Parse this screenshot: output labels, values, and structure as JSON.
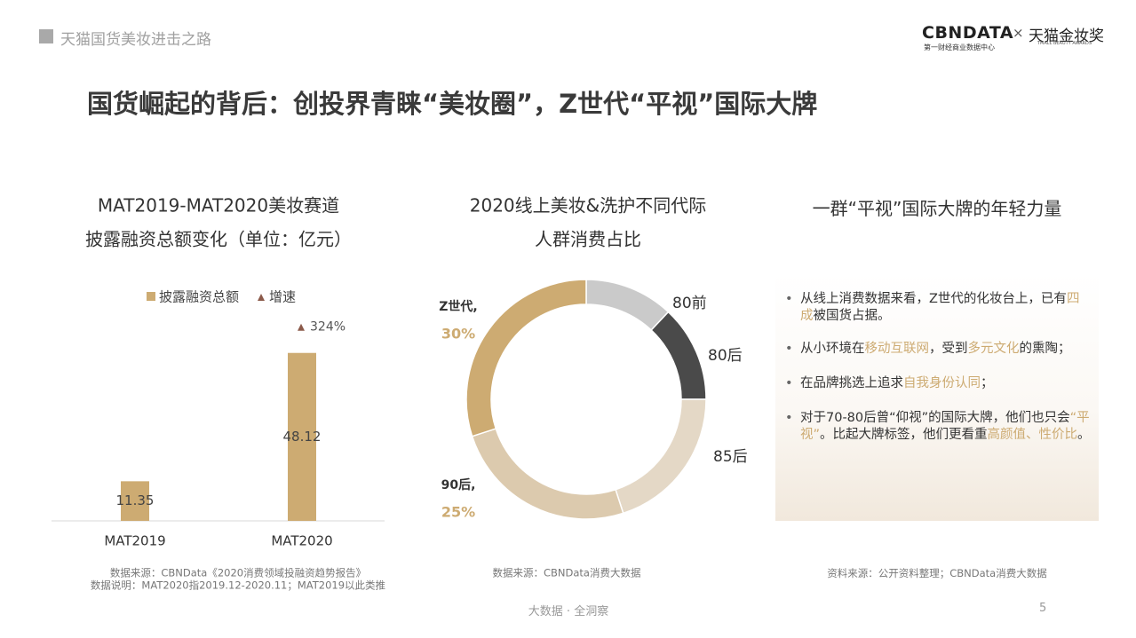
{
  "header": {
    "section": "天猫国货美妆进击之路",
    "logo_main": "CBNDATA",
    "logo_sub": "第一财经商业数据中心",
    "logo_x": "×",
    "logo_brand": "天猫金妆奖",
    "logo_brand_sub": "TMALL BEAUTY AWARDS"
  },
  "title": "国货崛起的背后：创投界青睐“美妆圈”，Z世代“平视”国际大牌",
  "chart_data": [
    {
      "type": "bar",
      "title_lines": [
        "MAT2019-MAT2020美妆赛道",
        "披露融资总额变化（单位：亿元）"
      ],
      "categories": [
        "MAT2019",
        "MAT2020"
      ],
      "series": [
        {
          "name": "披露融资总额",
          "color": "#cdab72",
          "values": [
            11.35,
            48.12
          ]
        }
      ],
      "growth": {
        "name": "增速",
        "color": "#8b5a4a",
        "values": [
          null,
          324
        ],
        "value_labels": [
          null,
          "324%"
        ]
      },
      "ylim": [
        0,
        60
      ],
      "source": [
        "数据来源：CBNData《2020消费领域投融资趋势报告》",
        "数据说明：MAT2020指2019.12-2020.11；MAT2019以此类推"
      ]
    },
    {
      "type": "donut",
      "title_lines": [
        "2020线上美妆&洗护不同代际",
        "人群消费占比"
      ],
      "categories": [
        "80前",
        "80后",
        "85后",
        "90后,",
        "Z世代,"
      ],
      "values": [
        12,
        13,
        20,
        25,
        30
      ],
      "value_labels": [
        null,
        null,
        null,
        "25%",
        "30%"
      ],
      "colors": [
        "#cacaca",
        "#4a4a4a",
        "#e4d8c6",
        "#dccaae",
        "#cdab72"
      ],
      "source": [
        "数据来源：CBNData消费大数据"
      ]
    }
  ],
  "panel": {
    "title": "一群“平视”国际大牌的年轻力量",
    "bullets": [
      [
        {
          "text": "从线上消费数据来看，Z世代的化妆台上，已有",
          "accent": false
        },
        {
          "text": "四成",
          "accent": true
        },
        {
          "text": "被国货占据。",
          "accent": false
        }
      ],
      [
        {
          "text": "从小环境在",
          "accent": false
        },
        {
          "text": "移动互联网",
          "accent": true
        },
        {
          "text": "，受到",
          "accent": false
        },
        {
          "text": "多元文化",
          "accent": true
        },
        {
          "text": "的熏陶；",
          "accent": false
        }
      ],
      [
        {
          "text": "在品牌挑选上追求",
          "accent": false
        },
        {
          "text": "自我身份认同",
          "accent": true
        },
        {
          "text": "；",
          "accent": false
        }
      ],
      [
        {
          "text": "对于70-80后曾“仰视”的国际大牌，他们也只会",
          "accent": false
        },
        {
          "text": "“平视”",
          "accent": true
        },
        {
          "text": "。比起大牌标签，他们更看重",
          "accent": false
        },
        {
          "text": "高颜值、性价比",
          "accent": true
        },
        {
          "text": "。",
          "accent": false
        }
      ]
    ],
    "source": "资料来源：公开资料整理；CBNData消费大数据"
  },
  "footer": {
    "tagline": "大数据 · 全洞察",
    "page": 5
  }
}
